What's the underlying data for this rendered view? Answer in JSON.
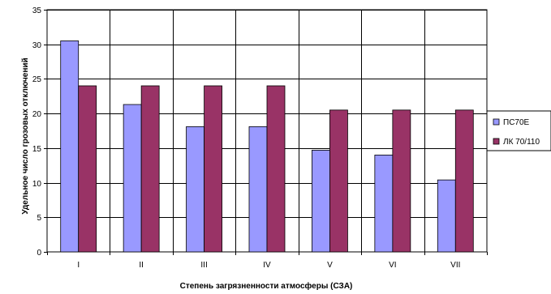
{
  "chart_data": {
    "type": "bar",
    "title": "",
    "xlabel": "Степень загрязненности атмосферы (СЗА)",
    "ylabel": "Удельное число грозовых отключений",
    "categories": [
      "I",
      "II",
      "III",
      "IV",
      "V",
      "VI",
      "VII"
    ],
    "ylim": [
      0,
      35
    ],
    "yticks": [
      0,
      5,
      10,
      15,
      20,
      25,
      30,
      35
    ],
    "grid": true,
    "legend_position": "right",
    "series": [
      {
        "name": "ПС70Е",
        "color": "#9999ff",
        "values": [
          30.5,
          21.3,
          18.1,
          18.1,
          14.7,
          14.0,
          10.4
        ]
      },
      {
        "name": "ЛК 70/110",
        "color": "#993366",
        "values": [
          24.0,
          24.0,
          24.0,
          24.0,
          20.5,
          20.5,
          20.5
        ]
      }
    ]
  }
}
